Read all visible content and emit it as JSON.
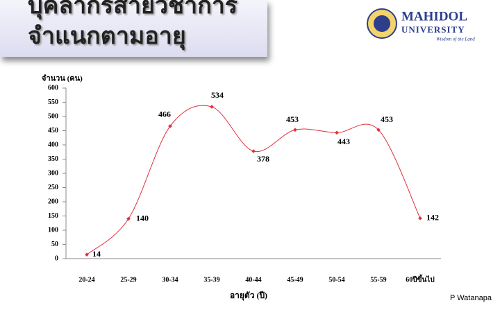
{
  "header": {
    "title": "บุคลากรสายวิชาการจำแนกตามอายุ",
    "logo_name": "MAHIDOL",
    "logo_sub": "UNIVERSITY",
    "logo_motto": "Wisdom of the Land"
  },
  "chart_data": {
    "type": "line",
    "y_label": "จำนวน (คน)",
    "x_label": "อายุตัว (ปี)",
    "categories": [
      "20-24",
      "25-29",
      "30-34",
      "35-39",
      "40-44",
      "45-49",
      "50-54",
      "55-59",
      "60ปีขึ้นไป"
    ],
    "values": [
      14,
      140,
      466,
      534,
      378,
      453,
      443,
      453,
      142
    ],
    "color": "#e0303a",
    "ylim": [
      0,
      600
    ],
    "yticks": [
      0,
      50,
      100,
      150,
      200,
      250,
      300,
      350,
      400,
      450,
      500,
      550,
      600
    ],
    "grid": false
  },
  "footer": {
    "credit": "P Watanapa"
  }
}
